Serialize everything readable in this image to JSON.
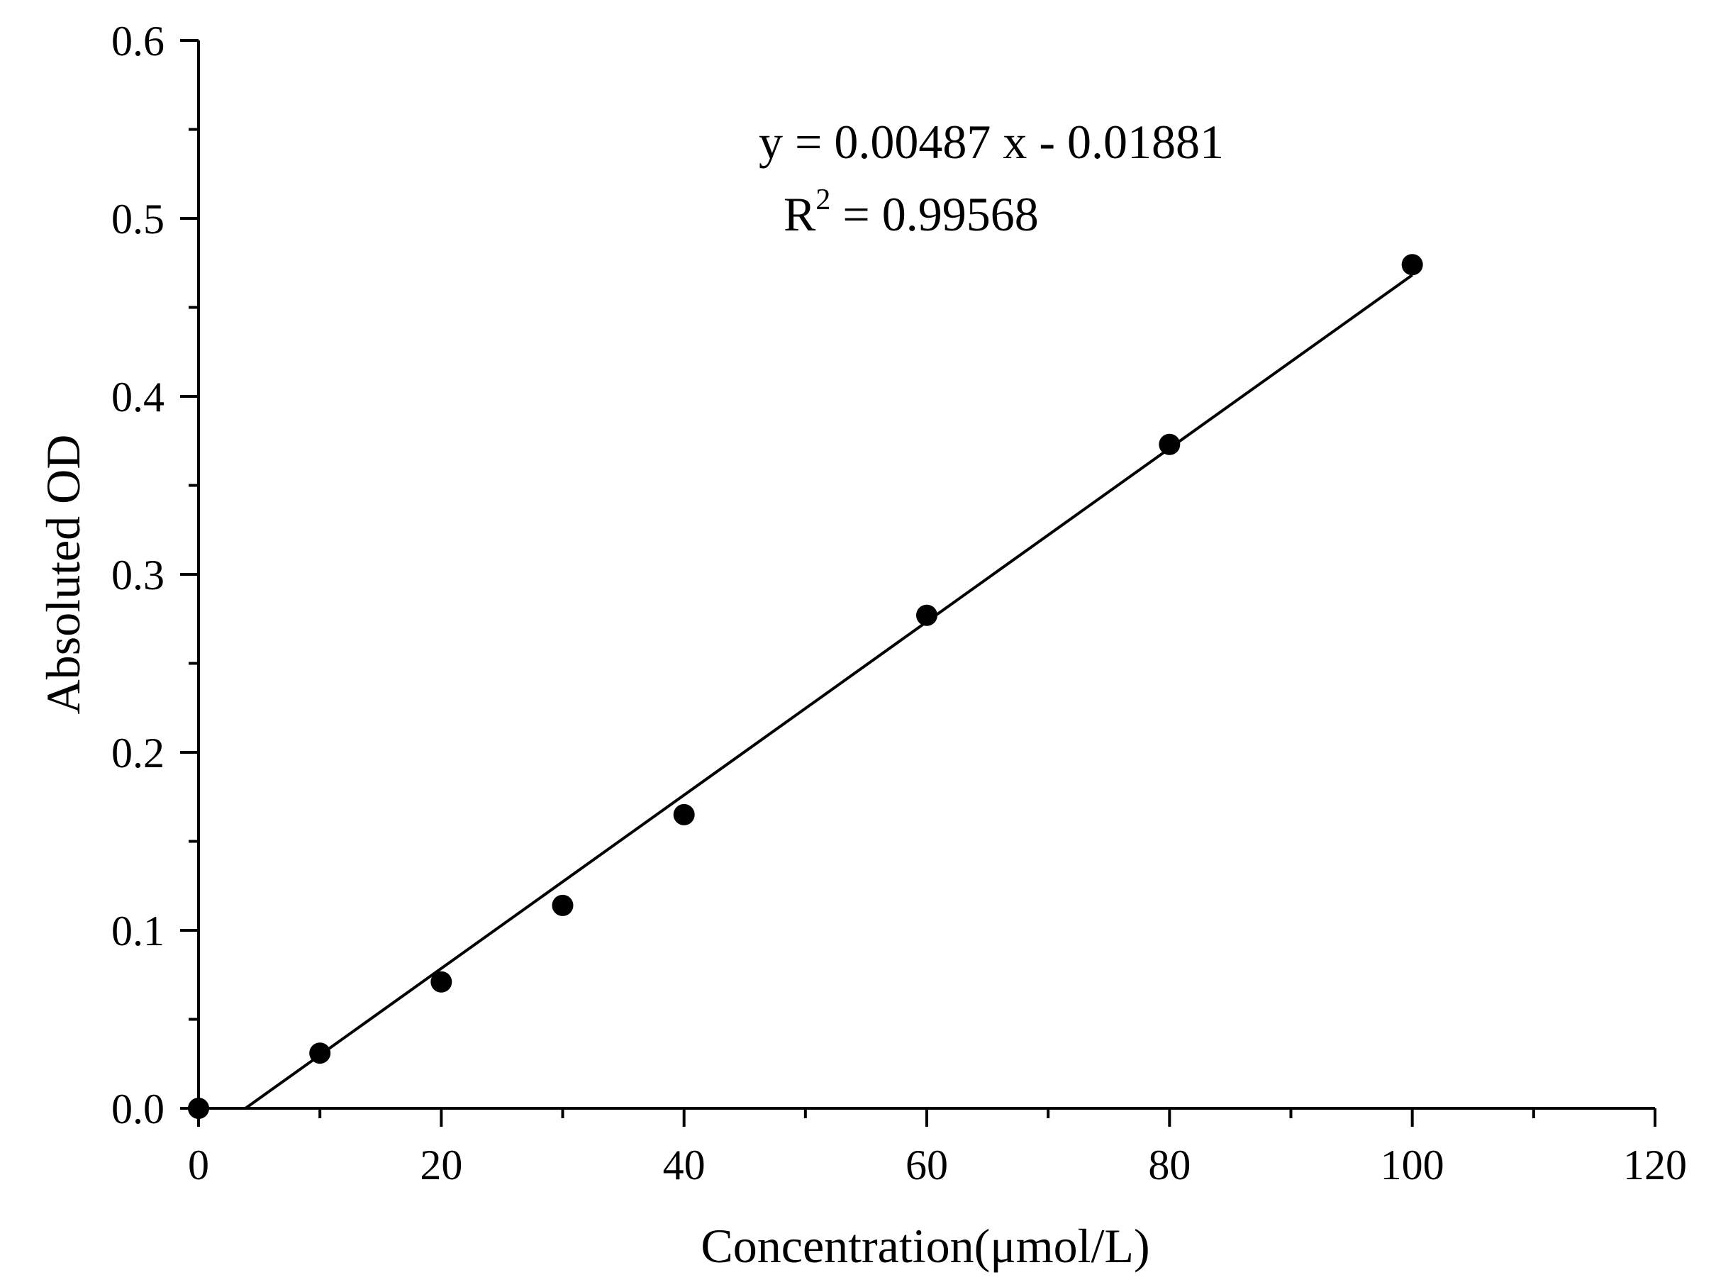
{
  "chart_data": {
    "type": "scatter",
    "title": "",
    "xlabel": "Concentration(μmol/L)",
    "ylabel": "Absoluted OD",
    "xlim": [
      0,
      120
    ],
    "ylim": [
      0,
      0.6
    ],
    "xticks": [
      "0",
      "20",
      "40",
      "60",
      "80",
      "100",
      "120"
    ],
    "yticks": [
      "0.0",
      "0.1",
      "0.2",
      "0.3",
      "0.4",
      "0.5",
      "0.6"
    ],
    "grid": false,
    "legend": "none",
    "series": [
      {
        "x": [
          0,
          10,
          20,
          30,
          40,
          60,
          80,
          100
        ],
        "y": [
          0.0,
          0.031,
          0.071,
          0.114,
          0.165,
          0.277,
          0.373,
          0.474
        ]
      }
    ],
    "fit": {
      "slope": 0.00487,
      "intercept": -0.01881,
      "equation_main": "y = 0.00487 x - 0.01881",
      "r2_label_base": "R",
      "r2_label_sup": "2",
      "r2_label_rest": " = 0.99568"
    },
    "colors": {
      "marker": "#000000",
      "line": "#000000",
      "axis": "#000000"
    }
  }
}
